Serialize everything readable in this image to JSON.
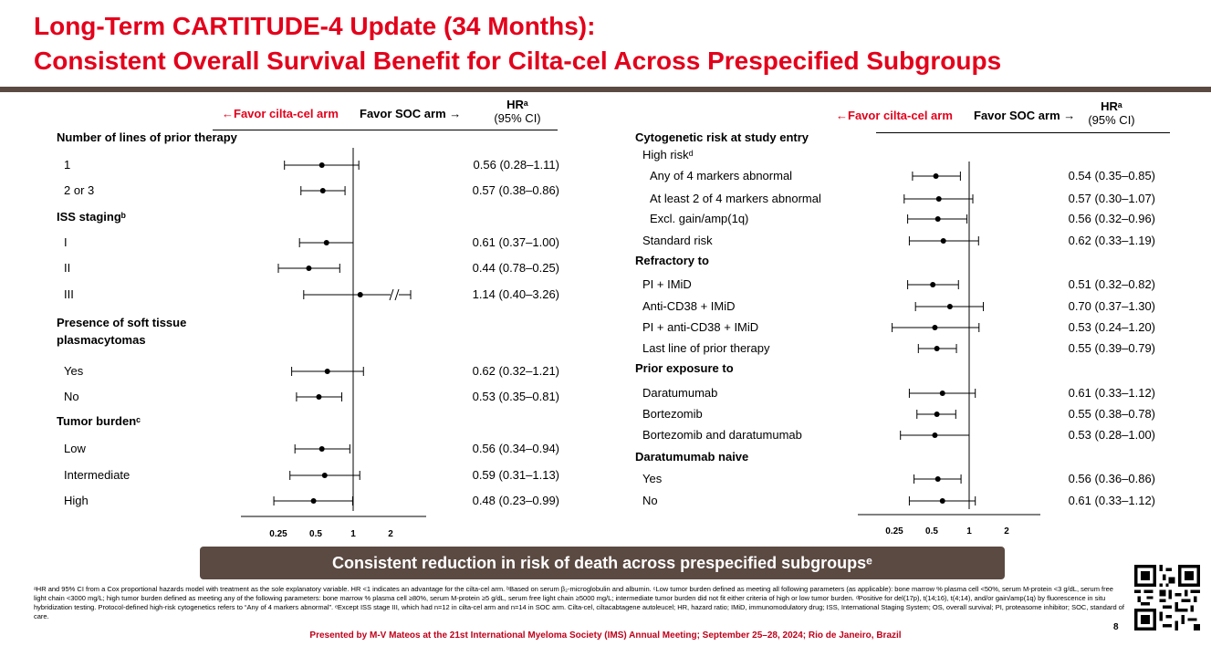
{
  "title": {
    "line1": "Long-Term CARTITUDE-4 Update (34 Months):",
    "line2": "Consistent Overall Survival Benefit for Cilta-cel Across Prespecified Subgroups"
  },
  "header": {
    "favor_cilta": "←Favor cilta-cel arm",
    "favor_soc": "Favor SOC arm →",
    "hr_label": "HRᵃ",
    "ci_label": "(95% CI)"
  },
  "chart_data": [
    {
      "type": "forest",
      "x_scale": "log",
      "x_ticks": [
        "0.25",
        "0.5",
        "1",
        "2"
      ],
      "xlim": [
        0.25,
        2
      ],
      "reference_line": 1,
      "rows": [
        {
          "label": "Number of lines of prior therapy",
          "header": true
        },
        {
          "label": "1",
          "hr": 0.56,
          "lo": 0.28,
          "hi": 1.11,
          "text": "0.56 (0.28–1.11)"
        },
        {
          "label": "2 or 3",
          "hr": 0.57,
          "lo": 0.38,
          "hi": 0.86,
          "text": "0.57 (0.38–0.86)"
        },
        {
          "label": "ISS stagingᵇ",
          "header": true
        },
        {
          "label": "I",
          "hr": 0.61,
          "lo": 0.37,
          "hi": 1.0,
          "text": "0.61 (0.37–1.00)"
        },
        {
          "label": "II",
          "hr": 0.44,
          "lo": 0.25,
          "hi": 0.78,
          "text": "0.44 (0.78–0.25)"
        },
        {
          "label": "III",
          "hr": 1.14,
          "lo": 0.4,
          "hi": 3.26,
          "text": "1.14 (0.40–3.26)",
          "broken_axis": true
        },
        {
          "label": "Presence of soft tissue",
          "label2": "plasmacytomas",
          "header": true
        },
        {
          "label": "Yes",
          "hr": 0.62,
          "lo": 0.32,
          "hi": 1.21,
          "text": "0.62 (0.32–1.21)"
        },
        {
          "label": "No",
          "hr": 0.53,
          "lo": 0.35,
          "hi": 0.81,
          "text": "0.53 (0.35–0.81)"
        },
        {
          "label": "Tumor burdenᶜ",
          "header": true
        },
        {
          "label": "Low",
          "hr": 0.56,
          "lo": 0.34,
          "hi": 0.94,
          "text": "0.56 (0.34–0.94)"
        },
        {
          "label": "Intermediate",
          "hr": 0.59,
          "lo": 0.31,
          "hi": 1.13,
          "text": "0.59 (0.31–1.13)"
        },
        {
          "label": "High",
          "hr": 0.48,
          "lo": 0.23,
          "hi": 0.99,
          "text": "0.48 (0.23–0.99)"
        }
      ]
    },
    {
      "type": "forest",
      "x_scale": "log",
      "x_ticks": [
        "0.25",
        "0.5",
        "1",
        "2"
      ],
      "xlim": [
        0.25,
        2
      ],
      "reference_line": 1,
      "rows": [
        {
          "label": "Cytogenetic risk at study entry",
          "header": true
        },
        {
          "label": "High riskᵈ",
          "subheader": true
        },
        {
          "label": "Any of 4 markers abnormal",
          "hr": 0.54,
          "lo": 0.35,
          "hi": 0.85,
          "text": "0.54 (0.35–0.85)"
        },
        {
          "label": "At least 2 of 4 markers abnormal",
          "hr": 0.57,
          "lo": 0.3,
          "hi": 1.07,
          "text": "0.57 (0.30–1.07)"
        },
        {
          "label": "Excl. gain/amp(1q)",
          "hr": 0.56,
          "lo": 0.32,
          "hi": 0.96,
          "text": "0.56 (0.32–0.96)"
        },
        {
          "label": "Standard risk",
          "hr": 0.62,
          "lo": 0.33,
          "hi": 1.19,
          "text": "0.62 (0.33–1.19)"
        },
        {
          "label": "Refractory to",
          "header": true
        },
        {
          "label": "PI + IMiD",
          "hr": 0.51,
          "lo": 0.32,
          "hi": 0.82,
          "text": "0.51 (0.32–0.82)"
        },
        {
          "label": "Anti-CD38 + IMiD",
          "hr": 0.7,
          "lo": 0.37,
          "hi": 1.3,
          "text": "0.70 (0.37–1.30)"
        },
        {
          "label": "PI + anti-CD38 + IMiD",
          "hr": 0.53,
          "lo": 0.24,
          "hi": 1.2,
          "text": "0.53 (0.24–1.20)"
        },
        {
          "label": "Last line of prior therapy",
          "hr": 0.55,
          "lo": 0.39,
          "hi": 0.79,
          "text": "0.55 (0.39–0.79)"
        },
        {
          "label": "Prior exposure to",
          "header": true
        },
        {
          "label": "Daratumumab",
          "hr": 0.61,
          "lo": 0.33,
          "hi": 1.12,
          "text": "0.61 (0.33–1.12)"
        },
        {
          "label": "Bortezomib",
          "hr": 0.55,
          "lo": 0.38,
          "hi": 0.78,
          "text": "0.55 (0.38–0.78)"
        },
        {
          "label": "Bortezomib and daratumumab",
          "hr": 0.53,
          "lo": 0.28,
          "hi": 1.0,
          "text": "0.53 (0.28–1.00)"
        },
        {
          "label": "Daratumumab naive",
          "header": true
        },
        {
          "label": "Yes",
          "hr": 0.56,
          "lo": 0.36,
          "hi": 0.86,
          "text": "0.56 (0.36–0.86)"
        },
        {
          "label": "No",
          "hr": 0.61,
          "lo": 0.33,
          "hi": 1.12,
          "text": "0.61 (0.33–1.12)"
        }
      ]
    }
  ],
  "banner": "Consistent reduction in risk of death across prespecified subgroupsᵉ",
  "footnote": "ᵃHR and 95% CI from a Cox proportional hazards model with treatment as the sole explanatory variable. HR <1 indicates an advantage for the cilta-cel arm. ᵇBased on serum β₂-microglobulin and albumin. ᶜLow tumor burden defined as meeting all following parameters (as applicable): bone marrow % plasma cell <50%, serum M-protein <3 g/dL, serum free light chain <3000 mg/L; high tumor burden defined as meeting any of the following parameters: bone marrow % plasma cell ≥80%, serum M-protein ≥5 g/dL, serum free light chain ≥5000 mg/L; intermediate tumor burden did not fit either criteria of high or low tumor burden. ᵈPositive for del(17p), t(14;16), t(4;14), and/or gain/amp(1q) by fluorescence in situ hybridization testing. Protocol-defined high-risk cytogenetics refers to “Any of 4 markers abnormal”. ᵉExcept ISS stage III, which had n=12 in cilta-cel arm and n=14 in SOC arm. Cilta-cel, ciltacabtagene autoleucel; HR, hazard ratio; IMiD, immunomodulatory drug; ISS, International Staging System; OS, overall survival; PI, proteasome inhibitor; SOC, standard of care.",
  "presented": "Presented by M-V Mateos at the 21st International Myeloma Society (IMS) Annual Meeting; September 25–28, 2024; Rio de Janeiro, Brazil",
  "page_number": "8",
  "colors": {
    "title_red": "#e3001b",
    "banner_brown": "#5b4a42"
  },
  "icons": {
    "qr": "qr-code-icon"
  }
}
